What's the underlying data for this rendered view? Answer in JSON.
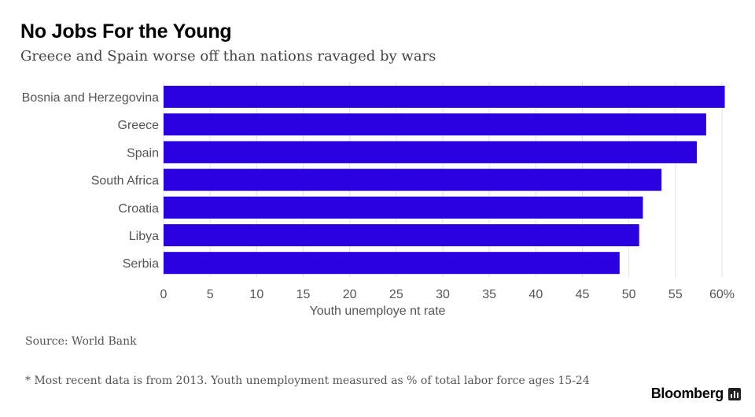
{
  "header": {
    "title": "No Jobs For the Young",
    "subtitle": "Greece and Spain worse off than nations ravaged by wars"
  },
  "chart_data": {
    "type": "bar",
    "orientation": "horizontal",
    "categories": [
      "Bosnia and Herzegovina",
      "Greece",
      "Spain",
      "South Africa",
      "Croatia",
      "Libya",
      "Serbia"
    ],
    "values": [
      60.3,
      58.3,
      57.3,
      53.5,
      51.5,
      51.1,
      49.0
    ],
    "xlim": [
      0,
      60
    ],
    "ticks": [
      0,
      5,
      10,
      15,
      20,
      25,
      30,
      35,
      40,
      45,
      50,
      55,
      60
    ],
    "tick_labels": [
      "0",
      "5",
      "10",
      "15",
      "20",
      "25",
      "30",
      "35",
      "40",
      "45",
      "50",
      "55",
      "60%"
    ],
    "xlabel": "Youth unemploye nt rate",
    "ylabel": "",
    "grid": true,
    "bar_color": "#2a00e0"
  },
  "footer": {
    "source": "Source: World Bank",
    "footnote": "* Most recent data is from 2013. Youth unemployment measured as % of total labor force ages 15-24",
    "brand": "Bloomberg"
  }
}
